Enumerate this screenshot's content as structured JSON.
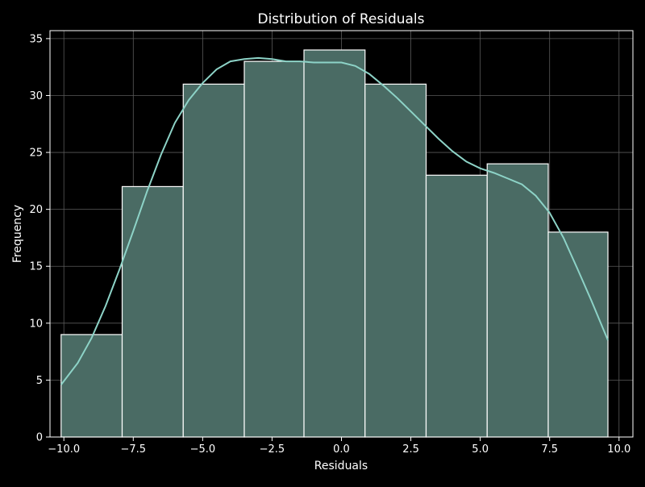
{
  "chart_data": {
    "type": "bar",
    "title": "Distribution of Residuals",
    "xlabel": "Residuals",
    "ylabel": "Frequency",
    "xlim": [
      -10.5,
      10.5
    ],
    "ylim": [
      0,
      35.7
    ],
    "grid": true,
    "bins": [
      {
        "x0": -10.1,
        "x1": -7.9,
        "count": 9
      },
      {
        "x0": -7.9,
        "x1": -5.7,
        "count": 22
      },
      {
        "x0": -5.7,
        "x1": -3.5,
        "count": 31
      },
      {
        "x0": -3.5,
        "x1": -1.35,
        "count": 33
      },
      {
        "x0": -1.35,
        "x1": 0.85,
        "count": 34
      },
      {
        "x0": 0.85,
        "x1": 3.05,
        "count": 31
      },
      {
        "x0": 3.05,
        "x1": 5.25,
        "count": 23
      },
      {
        "x0": 5.25,
        "x1": 7.45,
        "count": 24
      },
      {
        "x0": 7.45,
        "x1": 9.6,
        "count": 18
      }
    ],
    "kde": {
      "x": [
        -10.1,
        -9.5,
        -9.0,
        -8.5,
        -8.0,
        -7.5,
        -7.0,
        -6.5,
        -6.0,
        -5.5,
        -5.0,
        -4.5,
        -4.0,
        -3.5,
        -3.0,
        -2.5,
        -2.0,
        -1.5,
        -1.0,
        -0.5,
        0.0,
        0.5,
        1.0,
        1.5,
        2.0,
        2.5,
        3.0,
        3.5,
        4.0,
        4.5,
        5.0,
        5.5,
        6.0,
        6.5,
        7.0,
        7.5,
        8.0,
        8.5,
        9.0,
        9.6
      ],
      "y": [
        4.6,
        6.5,
        8.7,
        11.5,
        14.7,
        18.1,
        21.6,
        24.8,
        27.6,
        29.6,
        31.1,
        32.3,
        33.0,
        33.2,
        33.3,
        33.2,
        33.0,
        33.0,
        32.9,
        32.9,
        32.9,
        32.6,
        31.9,
        30.9,
        29.8,
        28.6,
        27.4,
        26.2,
        25.1,
        24.2,
        23.6,
        23.2,
        22.7,
        22.2,
        21.2,
        19.7,
        17.5,
        14.8,
        12.0,
        8.5
      ]
    },
    "xticks": [
      -10.0,
      -7.5,
      -5.0,
      -2.5,
      0.0,
      2.5,
      5.0,
      7.5,
      10.0
    ],
    "xtick_labels": [
      "−10.0",
      "−7.5",
      "−5.0",
      "−2.5",
      "0.0",
      "2.5",
      "5.0",
      "7.5",
      "10.0"
    ],
    "yticks": [
      0,
      5,
      10,
      15,
      20,
      25,
      30,
      35
    ],
    "ytick_labels": [
      "0",
      "5",
      "10",
      "15",
      "20",
      "25",
      "30",
      "35"
    ],
    "colors": {
      "background": "#000000",
      "bar_fill": "#4a6b64",
      "bar_edge": "#ffffff",
      "kde_line": "#8dd3c7",
      "grid": "#5a5a5a",
      "axis": "#ffffff",
      "text": "#ffffff"
    }
  }
}
